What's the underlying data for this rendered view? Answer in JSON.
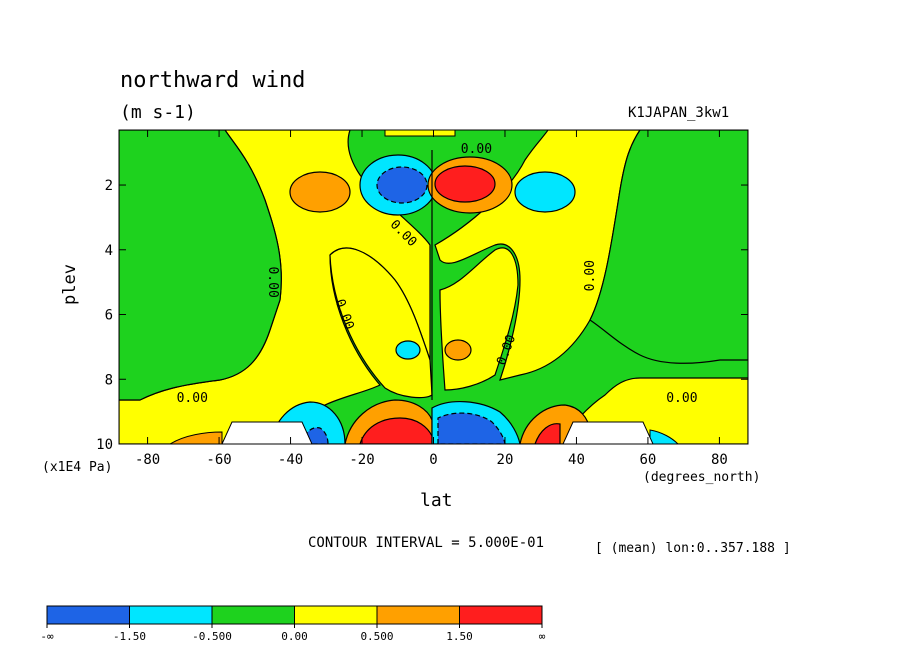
{
  "chart_data": {
    "type": "contour",
    "title": "northward wind",
    "units": "(m s-1)",
    "dataset": "K1JAPAN_3kw1",
    "xlabel": "lat",
    "ylabel": "plev",
    "x_units": "(degrees_north)",
    "y_units": "(x1E4 Pa)",
    "xlim": [
      -88,
      88
    ],
    "ylim": [
      10,
      0.3
    ],
    "x_ticks": [
      -80,
      -60,
      -40,
      -20,
      0,
      20,
      40,
      60,
      80
    ],
    "y_ticks": [
      2,
      4,
      6,
      8,
      10
    ],
    "contour_interval_label": "CONTOUR INTERVAL = 5.000E-01",
    "mean_info": "[ (mean) lon:0..357.188 ]",
    "contour_labels": [
      {
        "text": "0.00",
        "lat": 12,
        "plev": 0.9,
        "rotate": 0
      },
      {
        "text": "0.00",
        "lat": -8.5,
        "plev": 3.5,
        "rotate": 45
      },
      {
        "text": "0.00",
        "lat": -45,
        "plev": 5,
        "rotate": 90
      },
      {
        "text": "0.00",
        "lat": -25,
        "plev": 6,
        "rotate": 70
      },
      {
        "text": "0.00",
        "lat": 20.5,
        "plev": 7.1,
        "rotate": -70
      },
      {
        "text": "0.00",
        "lat": 44,
        "plev": 4.8,
        "rotate": -90
      },
      {
        "text": "0.00",
        "lat": -67.5,
        "plev": 8.6,
        "rotate": 0
      },
      {
        "text": "0.00",
        "lat": 69.5,
        "plev": 8.6,
        "rotate": 0
      }
    ],
    "colorbar": {
      "colors": [
        "#1e64e6",
        "#00e6ff",
        "#1ed21e",
        "#ffff00",
        "#ffa000",
        "#ff1e1e"
      ],
      "labels": [
        "-∞",
        "-1.50",
        "-0.500",
        "0.00",
        "0.500",
        "1.50",
        "∞"
      ]
    },
    "fill_colors": {
      "strong_negative": "#1e64e6",
      "negative": "#00e6ff",
      "near_zero_negative": "#1ed21e",
      "near_zero_positive": "#ffff00",
      "positive": "#ffa000",
      "strong_positive": "#ff1e1e",
      "missing": "#ffffff"
    }
  }
}
